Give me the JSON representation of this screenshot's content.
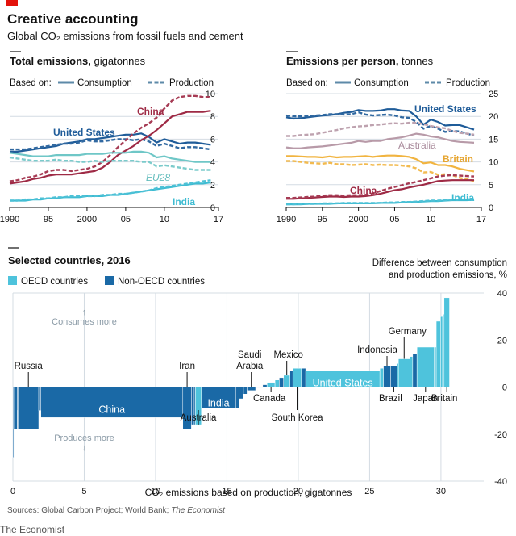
{
  "header": {
    "title": "Creative accounting",
    "subtitle": "Global CO₂ emissions from fossil fuels and cement"
  },
  "colors": {
    "us": "#1f5c99",
    "china": "#9e2a45",
    "eu28": "#6fc7c7",
    "india": "#3ebcd2",
    "australia": "#b89aa8",
    "britain": "#f1b440",
    "oecd": "#4ec3dc",
    "non_oecd": "#1a69a6",
    "legend_line": "#5d8aa8",
    "grid": "#d4dce3",
    "axis": "#121212"
  },
  "footer": {
    "source_prefix": "Sources: Global Carbon Project; World Bank; ",
    "source_italic": "The Economist",
    "brand": "The Economist"
  },
  "chart_data": [
    {
      "type": "line",
      "title_bold": "Total emissions,",
      "title_unit": " gigatonnes",
      "legend_prefix": "Based on:",
      "legend": [
        "Consumption",
        "Production"
      ],
      "x_ticks": [
        "1990",
        "95",
        "2000",
        "05",
        "10",
        "17"
      ],
      "x_tick_values": [
        1990,
        1995,
        2000,
        2005,
        2010,
        2017
      ],
      "y_ticks": [
        "0",
        "2",
        "4",
        "6",
        "8",
        "10"
      ],
      "y_tick_values": [
        0,
        2,
        4,
        6,
        8,
        10
      ],
      "xlim": [
        1990,
        2017
      ],
      "ylim": [
        0,
        10
      ],
      "years": [
        1990,
        1991,
        1992,
        1993,
        1994,
        1995,
        1996,
        1997,
        1998,
        1999,
        2000,
        2001,
        2002,
        2003,
        2004,
        2005,
        2006,
        2007,
        2008,
        2009,
        2010,
        2011,
        2012,
        2013,
        2014,
        2015,
        2016
      ],
      "series": [
        {
          "name": "United States",
          "key": "us",
          "basis": "Consumption",
          "values": [
            4.9,
            4.9,
            5.0,
            5.1,
            5.2,
            5.3,
            5.4,
            5.6,
            5.7,
            5.8,
            6.0,
            6.0,
            6.1,
            6.2,
            6.3,
            6.4,
            6.4,
            6.5,
            6.2,
            5.7,
            6.0,
            5.8,
            5.6,
            5.7,
            5.7,
            5.6,
            5.5
          ]
        },
        {
          "name": "",
          "key": "us",
          "basis": "Production",
          "values": [
            5.1,
            5.1,
            5.1,
            5.2,
            5.3,
            5.4,
            5.5,
            5.6,
            5.6,
            5.7,
            5.9,
            5.8,
            5.8,
            5.9,
            6.0,
            6.0,
            5.9,
            6.0,
            5.8,
            5.4,
            5.6,
            5.4,
            5.2,
            5.3,
            5.3,
            5.2,
            5.1
          ]
        },
        {
          "name": "China",
          "key": "china",
          "basis": "Consumption",
          "values": [
            2.1,
            2.2,
            2.3,
            2.5,
            2.6,
            2.8,
            2.9,
            2.9,
            2.9,
            3.0,
            3.1,
            3.2,
            3.5,
            4.0,
            4.6,
            5.0,
            5.4,
            5.9,
            6.3,
            6.8,
            7.4,
            8.0,
            8.2,
            8.4,
            8.4,
            8.4,
            8.5
          ]
        },
        {
          "name": "",
          "key": "china",
          "basis": "Production",
          "values": [
            2.3,
            2.4,
            2.6,
            2.7,
            2.9,
            3.2,
            3.3,
            3.3,
            3.2,
            3.3,
            3.4,
            3.6,
            4.0,
            4.6,
            5.3,
            5.9,
            6.5,
            7.0,
            7.4,
            7.9,
            8.7,
            9.4,
            9.7,
            9.8,
            9.8,
            9.7,
            9.7
          ]
        },
        {
          "name": "EU28",
          "key": "eu28",
          "basis": "Consumption",
          "values": [
            4.8,
            4.7,
            4.6,
            4.5,
            4.5,
            4.5,
            4.6,
            4.6,
            4.6,
            4.6,
            4.7,
            4.7,
            4.7,
            4.8,
            4.8,
            4.8,
            4.9,
            4.9,
            4.8,
            4.4,
            4.5,
            4.3,
            4.2,
            4.1,
            4.0,
            4.0,
            4.0
          ]
        },
        {
          "name": "",
          "key": "eu28",
          "basis": "Production",
          "values": [
            4.4,
            4.3,
            4.2,
            4.1,
            4.1,
            4.1,
            4.2,
            4.1,
            4.1,
            4.0,
            4.0,
            4.1,
            4.0,
            4.1,
            4.1,
            4.1,
            4.1,
            4.0,
            4.0,
            3.6,
            3.7,
            3.6,
            3.5,
            3.4,
            3.3,
            3.3,
            3.3
          ]
        },
        {
          "name": "India",
          "key": "india",
          "basis": "Consumption",
          "values": [
            0.6,
            0.6,
            0.6,
            0.7,
            0.7,
            0.8,
            0.8,
            0.9,
            0.9,
            0.9,
            1.0,
            1.0,
            1.0,
            1.1,
            1.1,
            1.2,
            1.3,
            1.4,
            1.5,
            1.6,
            1.7,
            1.8,
            1.9,
            2.0,
            2.1,
            2.1,
            2.2
          ]
        },
        {
          "name": "",
          "key": "india",
          "basis": "Production",
          "values": [
            0.6,
            0.6,
            0.7,
            0.7,
            0.8,
            0.8,
            0.9,
            0.9,
            1.0,
            1.0,
            1.0,
            1.0,
            1.1,
            1.1,
            1.2,
            1.2,
            1.3,
            1.4,
            1.5,
            1.7,
            1.8,
            1.9,
            2.0,
            2.1,
            2.2,
            2.3,
            2.4
          ]
        }
      ]
    },
    {
      "type": "line",
      "title_bold": "Emissions per person,",
      "title_unit": " tonnes",
      "legend_prefix": "Based on:",
      "legend": [
        "Consumption",
        "Production"
      ],
      "x_ticks": [
        "1990",
        "95",
        "2000",
        "05",
        "10",
        "17"
      ],
      "x_tick_values": [
        1990,
        1995,
        2000,
        2005,
        2010,
        2017
      ],
      "y_ticks": [
        "0",
        "5",
        "10",
        "15",
        "20",
        "25"
      ],
      "y_tick_values": [
        0,
        5,
        10,
        15,
        20,
        25
      ],
      "xlim": [
        1990,
        2017
      ],
      "ylim": [
        0,
        25
      ],
      "years": [
        1990,
        1991,
        1992,
        1993,
        1994,
        1995,
        1996,
        1997,
        1998,
        1999,
        2000,
        2001,
        2002,
        2003,
        2004,
        2005,
        2006,
        2007,
        2008,
        2009,
        2010,
        2011,
        2012,
        2013,
        2014,
        2015,
        2016
      ],
      "series": [
        {
          "name": "United States",
          "key": "us",
          "basis": "Consumption",
          "values": [
            19.8,
            19.5,
            19.6,
            19.8,
            20.0,
            20.2,
            20.3,
            20.5,
            20.8,
            21.0,
            21.4,
            21.2,
            21.2,
            21.3,
            21.6,
            21.6,
            21.3,
            21.2,
            20.0,
            18.2,
            19.3,
            18.8,
            18.0,
            18.1,
            18.1,
            17.6,
            17.1
          ]
        },
        {
          "name": "",
          "key": "us",
          "basis": "Production",
          "values": [
            20.2,
            20.0,
            20.0,
            20.1,
            20.2,
            20.3,
            20.5,
            20.5,
            20.4,
            20.5,
            20.9,
            20.4,
            20.2,
            20.3,
            20.4,
            20.2,
            19.8,
            19.7,
            18.8,
            17.3,
            17.9,
            17.3,
            16.6,
            16.8,
            16.7,
            16.2,
            15.8
          ]
        },
        {
          "name": "Australia",
          "key": "australia",
          "basis": "Consumption",
          "values": [
            13.2,
            13.0,
            13.0,
            13.2,
            13.3,
            13.4,
            13.6,
            13.8,
            14.0,
            14.2,
            14.6,
            14.4,
            14.6,
            14.6,
            15.0,
            15.2,
            15.4,
            15.8,
            16.2,
            16.0,
            15.6,
            15.4,
            15.0,
            14.6,
            14.4,
            14.3,
            14.2
          ]
        },
        {
          "name": "",
          "key": "australia",
          "basis": "Production",
          "values": [
            15.7,
            15.7,
            15.9,
            16.0,
            16.1,
            16.4,
            16.7,
            17.0,
            17.4,
            17.6,
            17.8,
            17.9,
            18.1,
            18.2,
            18.4,
            18.5,
            18.4,
            18.6,
            18.6,
            18.3,
            17.9,
            17.6,
            17.4,
            16.8,
            16.4,
            16.2,
            16.0
          ]
        },
        {
          "name": "Britain",
          "key": "britain",
          "basis": "Consumption",
          "values": [
            11.3,
            11.3,
            11.2,
            11.1,
            11.1,
            11.0,
            11.2,
            11.0,
            11.1,
            11.1,
            11.2,
            11.3,
            11.1,
            11.3,
            11.4,
            11.4,
            11.3,
            11.1,
            10.6,
            9.7,
            9.9,
            9.3,
            9.3,
            9.0,
            8.5,
            8.2,
            7.9
          ]
        },
        {
          "name": "",
          "key": "britain",
          "basis": "Production",
          "values": [
            10.2,
            10.2,
            10.0,
            9.8,
            9.7,
            9.6,
            9.8,
            9.5,
            9.5,
            9.3,
            9.4,
            9.5,
            9.3,
            9.4,
            9.3,
            9.3,
            9.2,
            9.0,
            8.6,
            7.7,
            7.8,
            7.2,
            7.3,
            7.1,
            6.5,
            6.2,
            5.8
          ]
        },
        {
          "name": "China",
          "key": "china",
          "basis": "Consumption",
          "values": [
            1.9,
            1.9,
            2.0,
            2.1,
            2.2,
            2.3,
            2.4,
            2.4,
            2.3,
            2.4,
            2.4,
            2.5,
            2.7,
            3.0,
            3.4,
            3.8,
            4.0,
            4.4,
            4.7,
            5.0,
            5.4,
            5.8,
            5.9,
            6.0,
            6.0,
            6.0,
            6.0
          ]
        },
        {
          "name": "",
          "key": "china",
          "basis": "Production",
          "values": [
            2.1,
            2.1,
            2.2,
            2.3,
            2.4,
            2.6,
            2.7,
            2.7,
            2.6,
            2.7,
            2.7,
            2.8,
            3.1,
            3.6,
            4.1,
            4.5,
            4.9,
            5.3,
            5.6,
            6.0,
            6.4,
            6.8,
            7.0,
            7.1,
            7.0,
            6.9,
            6.8
          ]
        },
        {
          "name": "India",
          "key": "india",
          "basis": "Consumption",
          "values": [
            0.7,
            0.7,
            0.7,
            0.8,
            0.8,
            0.8,
            0.8,
            0.9,
            0.9,
            0.9,
            0.9,
            0.9,
            0.9,
            1.0,
            1.0,
            1.0,
            1.1,
            1.2,
            1.2,
            1.3,
            1.4,
            1.4,
            1.5,
            1.6,
            1.6,
            1.6,
            1.7
          ]
        },
        {
          "name": "",
          "key": "india",
          "basis": "Production",
          "values": [
            0.7,
            0.7,
            0.8,
            0.8,
            0.8,
            0.9,
            0.9,
            0.9,
            1.0,
            1.0,
            1.0,
            1.0,
            1.0,
            1.0,
            1.1,
            1.1,
            1.2,
            1.2,
            1.3,
            1.4,
            1.5,
            1.5,
            1.6,
            1.7,
            1.7,
            1.8,
            1.8
          ]
        }
      ]
    },
    {
      "type": "bar",
      "subtype": "variable-width",
      "title": "Selected countries, 2016",
      "legend": [
        "OECD countries",
        "Non-OECD countries"
      ],
      "y_title": "Difference between consumption and production emissions, %",
      "y_title_lines": [
        "Difference between consumption",
        "and production emissions, %"
      ],
      "xlabel": "CO₂ emissions based on production, gigatonnes",
      "x_ticks": [
        "0",
        "5",
        "10",
        "15",
        "20",
        "25",
        "30"
      ],
      "x_tick_values": [
        0,
        5,
        10,
        15,
        20,
        25,
        30
      ],
      "y_ticks": [
        "40",
        "20",
        "0",
        "-20",
        "-40"
      ],
      "y_tick_values": [
        40,
        20,
        0,
        -20,
        -40
      ],
      "xlim": [
        0,
        33
      ],
      "ylim": [
        -40,
        40
      ],
      "annotations": {
        "top": "Consumes more",
        "bottom": "Produces more",
        "up_arrow": "↑",
        "down_arrow": "↓"
      },
      "bars": [
        {
          "name": "",
          "oecd": false,
          "width": 0.06,
          "value": -30
        },
        {
          "name": "",
          "oecd": false,
          "width": 0.25,
          "value": -18
        },
        {
          "name": "",
          "oecd": false,
          "width": 0.05,
          "value": -10
        },
        {
          "name": "Russia",
          "oecd": false,
          "width": 1.45,
          "value": -18
        },
        {
          "name": "",
          "oecd": false,
          "width": 0.15,
          "value": -10
        },
        {
          "name": "China",
          "oecd": false,
          "width": 9.95,
          "value": -13
        },
        {
          "name": "Iran",
          "oecd": false,
          "width": 0.6,
          "value": -18
        },
        {
          "name": "",
          "oecd": false,
          "width": 0.2,
          "value": -16
        },
        {
          "name": "",
          "oecd": false,
          "width": 0.08,
          "value": -16
        },
        {
          "name": "Australia",
          "oecd": true,
          "width": 0.42,
          "value": -16
        },
        {
          "name": "India",
          "oecd": false,
          "width": 2.4,
          "value": -9
        },
        {
          "name": "",
          "oecd": false,
          "width": 0.25,
          "value": -9
        },
        {
          "name": "",
          "oecd": false,
          "width": 0.3,
          "value": -5
        },
        {
          "name": "",
          "oecd": false,
          "width": 0.25,
          "value": -3
        },
        {
          "name": "Saudi Arabia",
          "oecd": false,
          "width": 0.6,
          "value": -1.5
        },
        {
          "name": "",
          "oecd": false,
          "width": 0.5,
          "value": 0
        },
        {
          "name": "",
          "oecd": false,
          "width": 0.3,
          "value": 1
        },
        {
          "name": "Canada",
          "oecd": true,
          "width": 0.56,
          "value": 2
        },
        {
          "name": "",
          "oecd": true,
          "width": 0.3,
          "value": 3
        },
        {
          "name": "",
          "oecd": false,
          "width": 0.3,
          "value": 4
        },
        {
          "name": "Mexico",
          "oecd": true,
          "width": 0.45,
          "value": 5
        },
        {
          "name": "",
          "oecd": false,
          "width": 0.2,
          "value": 7
        },
        {
          "name": "South Korea",
          "oecd": true,
          "width": 0.6,
          "value": 8
        },
        {
          "name": "",
          "oecd": false,
          "width": 0.3,
          "value": 8
        },
        {
          "name": "United States",
          "oecd": true,
          "width": 5.2,
          "value": 7
        },
        {
          "name": "",
          "oecd": true,
          "width": 0.25,
          "value": 8
        },
        {
          "name": "Indonesia",
          "oecd": false,
          "width": 0.5,
          "value": 9
        },
        {
          "name": "Brazil",
          "oecd": false,
          "width": 0.45,
          "value": 9
        },
        {
          "name": "",
          "oecd": true,
          "width": 0.1,
          "value": 10
        },
        {
          "name": "Germany",
          "oecd": true,
          "width": 0.8,
          "value": 12
        },
        {
          "name": "",
          "oecd": true,
          "width": 0.2,
          "value": 13
        },
        {
          "name": "",
          "oecd": false,
          "width": 0.3,
          "value": 14
        },
        {
          "name": "Japan",
          "oecd": true,
          "width": 1.2,
          "value": 17
        },
        {
          "name": "",
          "oecd": true,
          "width": 0.15,
          "value": 17
        },
        {
          "name": "",
          "oecd": true,
          "width": 0.3,
          "value": 28
        },
        {
          "name": "",
          "oecd": true,
          "width": 0.15,
          "value": 30
        },
        {
          "name": "",
          "oecd": true,
          "width": 0.1,
          "value": 31
        },
        {
          "name": "Britain",
          "oecd": true,
          "width": 0.38,
          "value": 38
        }
      ]
    }
  ]
}
